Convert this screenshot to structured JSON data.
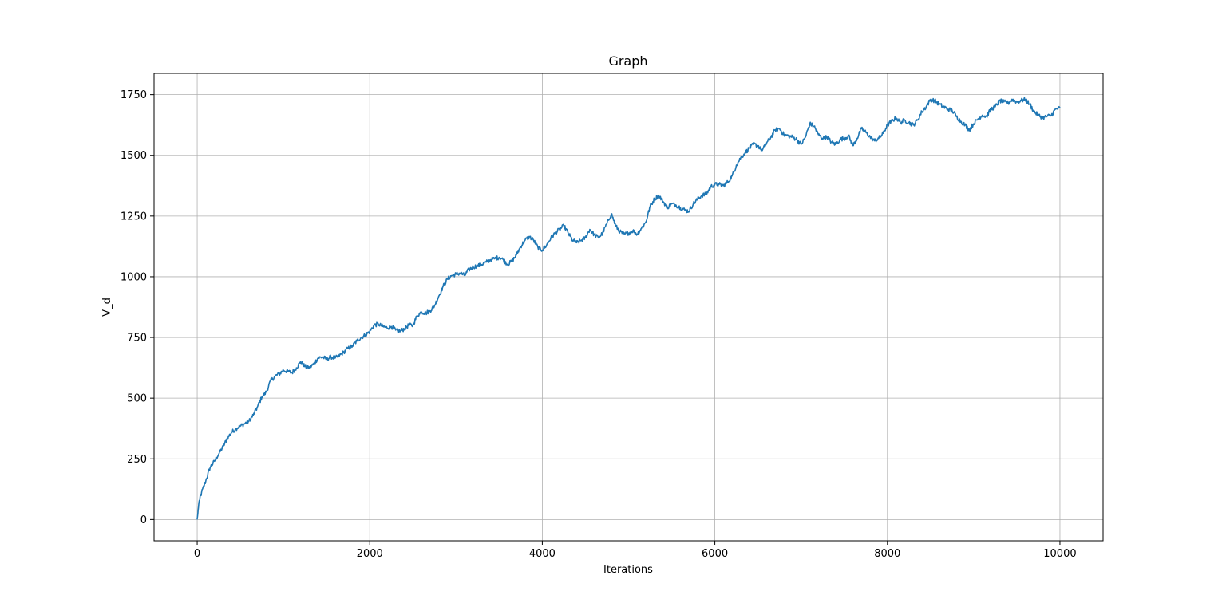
{
  "chart_data": {
    "type": "line",
    "title": "Graph",
    "xlabel": "Iterations",
    "ylabel": "V_d",
    "xlim": [
      -500,
      10500
    ],
    "ylim": [
      -87.5,
      1837.5
    ],
    "xticks": [
      0,
      2000,
      4000,
      6000,
      8000,
      10000
    ],
    "xtick_labels": [
      "0",
      "2000",
      "4000",
      "6000",
      "8000",
      "10000"
    ],
    "yticks": [
      0,
      250,
      500,
      750,
      1000,
      1250,
      1500,
      1750
    ],
    "ytick_labels": [
      "0",
      "250",
      "500",
      "750",
      "1000",
      "1250",
      "1500",
      "1750"
    ],
    "grid": true,
    "series": [
      {
        "color": "#1f77b4",
        "x": [
          0,
          20,
          50,
          100,
          150,
          200,
          250,
          300,
          350,
          400,
          450,
          500,
          550,
          600,
          650,
          700,
          750,
          800,
          850,
          900,
          950,
          1000,
          1050,
          1100,
          1150,
          1200,
          1250,
          1300,
          1350,
          1400,
          1450,
          1500,
          1550,
          1600,
          1650,
          1700,
          1750,
          1800,
          1850,
          1900,
          1950,
          2000,
          2050,
          2100,
          2150,
          2200,
          2250,
          2300,
          2350,
          2400,
          2450,
          2500,
          2550,
          2600,
          2650,
          2700,
          2750,
          2800,
          2850,
          2900,
          2950,
          3000,
          3050,
          3100,
          3150,
          3200,
          3250,
          3300,
          3350,
          3400,
          3450,
          3500,
          3550,
          3600,
          3650,
          3700,
          3750,
          3800,
          3850,
          3900,
          3950,
          4000,
          4050,
          4100,
          4150,
          4200,
          4250,
          4300,
          4350,
          4400,
          4450,
          4500,
          4550,
          4600,
          4650,
          4700,
          4750,
          4800,
          4850,
          4900,
          4950,
          5000,
          5050,
          5100,
          5150,
          5200,
          5250,
          5300,
          5350,
          5400,
          5450,
          5500,
          5550,
          5600,
          5650,
          5700,
          5750,
          5800,
          5850,
          5900,
          5950,
          6000,
          6050,
          6100,
          6150,
          6200,
          6250,
          6300,
          6350,
          6400,
          6450,
          6500,
          6550,
          6600,
          6650,
          6700,
          6750,
          6800,
          6850,
          6900,
          6950,
          7000,
          7050,
          7100,
          7150,
          7200,
          7250,
          7300,
          7350,
          7400,
          7450,
          7500,
          7550,
          7600,
          7650,
          7700,
          7750,
          7800,
          7850,
          7900,
          7950,
          8000,
          8050,
          8100,
          8150,
          8200,
          8250,
          8300,
          8350,
          8400,
          8450,
          8500,
          8550,
          8600,
          8650,
          8700,
          8750,
          8800,
          8850,
          8900,
          8950,
          9000,
          9050,
          9100,
          9150,
          9200,
          9250,
          9300,
          9350,
          9400,
          9450,
          9500,
          9550,
          9600,
          9650,
          9700,
          9750,
          9800,
          9850,
          9900,
          9950,
          10000
        ],
        "y": [
          0,
          70,
          110,
          160,
          215,
          240,
          270,
          300,
          335,
          360,
          375,
          385,
          395,
          405,
          430,
          465,
          505,
          525,
          570,
          590,
          600,
          615,
          610,
          605,
          625,
          650,
          630,
          625,
          640,
          665,
          670,
          660,
          670,
          665,
          675,
          690,
          705,
          715,
          735,
          750,
          760,
          775,
          800,
          805,
          795,
          790,
          795,
          780,
          775,
          785,
          800,
          800,
          840,
          855,
          850,
          860,
          880,
          920,
          960,
          990,
          1005,
          1010,
          1015,
          1005,
          1030,
          1040,
          1045,
          1050,
          1060,
          1070,
          1075,
          1080,
          1070,
          1050,
          1065,
          1090,
          1125,
          1150,
          1165,
          1150,
          1120,
          1110,
          1130,
          1160,
          1180,
          1195,
          1210,
          1180,
          1150,
          1140,
          1150,
          1160,
          1195,
          1175,
          1160,
          1180,
          1220,
          1260,
          1210,
          1185,
          1175,
          1180,
          1190,
          1175,
          1200,
          1225,
          1290,
          1320,
          1335,
          1310,
          1285,
          1300,
          1295,
          1285,
          1275,
          1270,
          1300,
          1320,
          1335,
          1340,
          1370,
          1380,
          1380,
          1375,
          1390,
          1415,
          1460,
          1490,
          1510,
          1530,
          1545,
          1540,
          1520,
          1550,
          1575,
          1605,
          1610,
          1585,
          1580,
          1575,
          1565,
          1545,
          1575,
          1630,
          1620,
          1585,
          1570,
          1575,
          1555,
          1545,
          1565,
          1570,
          1580,
          1540,
          1570,
          1610,
          1595,
          1575,
          1560,
          1570,
          1590,
          1625,
          1640,
          1655,
          1635,
          1645,
          1635,
          1625,
          1645,
          1680,
          1700,
          1730,
          1725,
          1710,
          1700,
          1690,
          1685,
          1660,
          1640,
          1625,
          1605,
          1630,
          1650,
          1665,
          1660,
          1690,
          1700,
          1725,
          1720,
          1715,
          1730,
          1720,
          1725,
          1730,
          1710,
          1680,
          1665,
          1655,
          1660,
          1665,
          1690,
          1695
        ]
      }
    ]
  }
}
